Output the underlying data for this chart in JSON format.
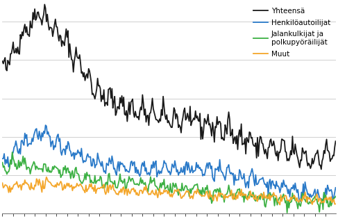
{
  "legend_labels": [
    "Yhteensä",
    "Henkilöautoilijat",
    "Jalankulkijat ja\npolkupyöräilijät",
    "Muut"
  ],
  "colors": [
    "#1a1a1a",
    "#2979c8",
    "#3cb043",
    "#f4a62a"
  ],
  "linewidths": [
    1.3,
    1.3,
    1.3,
    1.3
  ],
  "ylim": [
    0,
    550
  ],
  "xlim": [
    0,
    371
  ],
  "n_points": 372,
  "background_color": "#ffffff",
  "grid_color": "#c8c8c8",
  "legend_fontsize": 7.5,
  "waypoints_total_x": [
    0,
    18,
    42,
    54,
    72,
    108,
    144,
    180,
    216,
    252,
    288,
    324,
    348,
    371
  ],
  "waypoints_total_y": [
    370,
    450,
    530,
    490,
    440,
    310,
    270,
    250,
    240,
    215,
    175,
    155,
    140,
    165
  ],
  "waypoints_car_x": [
    0,
    18,
    42,
    60,
    108,
    168,
    228,
    288,
    330,
    355,
    371
  ],
  "waypoints_car_y": [
    120,
    175,
    210,
    185,
    128,
    118,
    115,
    85,
    58,
    48,
    62
  ],
  "waypoints_ped_x": [
    0,
    12,
    36,
    60,
    108,
    168,
    228,
    288,
    324,
    355,
    371
  ],
  "waypoints_ped_y": [
    120,
    130,
    120,
    115,
    82,
    74,
    58,
    40,
    34,
    30,
    32
  ],
  "waypoints_oth_x": [
    0,
    24,
    60,
    108,
    168,
    228,
    288,
    330,
    371
  ],
  "waypoints_oth_y": [
    63,
    75,
    77,
    64,
    55,
    50,
    43,
    36,
    36
  ],
  "noise_total": 14,
  "noise_car": 9,
  "noise_ped": 8,
  "noise_oth": 6,
  "seasonal_total": 20,
  "seasonal_car": 12,
  "seasonal_ped": 10,
  "seasonal_oth": 5
}
